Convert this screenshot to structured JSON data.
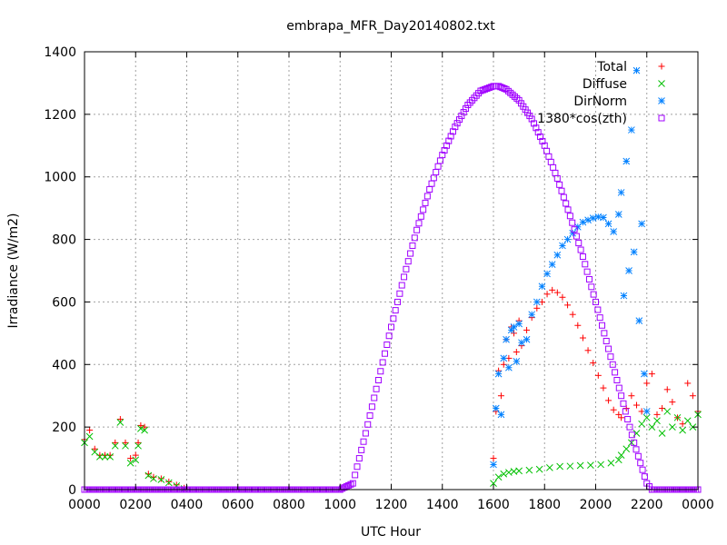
{
  "chart_data": {
    "type": "scatter",
    "title": "embrapa_MFR_Day20140802.txt",
    "xlabel": "UTC Hour",
    "ylabel": "Irradiance (W/m2)",
    "xlim": [
      0,
      24
    ],
    "ylim": [
      0,
      1400
    ],
    "grid": true,
    "legend_position": "top-right",
    "x_ticks": [
      {
        "value": 0,
        "label": "0000"
      },
      {
        "value": 2,
        "label": "0200"
      },
      {
        "value": 4,
        "label": "0400"
      },
      {
        "value": 6,
        "label": "0600"
      },
      {
        "value": 8,
        "label": "0800"
      },
      {
        "value": 10,
        "label": "1000"
      },
      {
        "value": 12,
        "label": "1200"
      },
      {
        "value": 14,
        "label": "1400"
      },
      {
        "value": 16,
        "label": "1600"
      },
      {
        "value": 18,
        "label": "1800"
      },
      {
        "value": 20,
        "label": "2000"
      },
      {
        "value": 22,
        "label": "2200"
      },
      {
        "value": 24,
        "label": "0000"
      }
    ],
    "y_ticks": [
      {
        "value": 0,
        "label": "0"
      },
      {
        "value": 200,
        "label": "200"
      },
      {
        "value": 400,
        "label": "400"
      },
      {
        "value": 600,
        "label": "600"
      },
      {
        "value": 800,
        "label": "800"
      },
      {
        "value": 1000,
        "label": "1000"
      },
      {
        "value": 1200,
        "label": "1200"
      },
      {
        "value": 1400,
        "label": "1400"
      }
    ],
    "series": [
      {
        "name": "Total",
        "marker": "plus",
        "color": "#ff0000",
        "points": [
          [
            0.0,
            160
          ],
          [
            0.2,
            190
          ],
          [
            0.4,
            130
          ],
          [
            0.6,
            110
          ],
          [
            0.8,
            110
          ],
          [
            1.0,
            110
          ],
          [
            1.2,
            150
          ],
          [
            1.4,
            225
          ],
          [
            1.6,
            150
          ],
          [
            1.8,
            100
          ],
          [
            2.0,
            110
          ],
          [
            2.1,
            150
          ],
          [
            2.2,
            205
          ],
          [
            2.35,
            200
          ],
          [
            2.5,
            50
          ],
          [
            2.7,
            40
          ],
          [
            3.0,
            35
          ],
          [
            3.3,
            25
          ],
          [
            3.6,
            15
          ],
          [
            3.9,
            5
          ],
          [
            16.0,
            100
          ],
          [
            16.1,
            250
          ],
          [
            16.2,
            380
          ],
          [
            16.3,
            300
          ],
          [
            16.4,
            400
          ],
          [
            16.5,
            480
          ],
          [
            16.6,
            420
          ],
          [
            16.7,
            520
          ],
          [
            16.8,
            500
          ],
          [
            16.9,
            440
          ],
          [
            17.0,
            540
          ],
          [
            17.1,
            460
          ],
          [
            17.3,
            510
          ],
          [
            17.5,
            550
          ],
          [
            17.7,
            580
          ],
          [
            17.9,
            600
          ],
          [
            18.1,
            625
          ],
          [
            18.3,
            638
          ],
          [
            18.5,
            630
          ],
          [
            18.7,
            615
          ],
          [
            18.9,
            590
          ],
          [
            19.1,
            560
          ],
          [
            19.3,
            525
          ],
          [
            19.5,
            485
          ],
          [
            19.7,
            445
          ],
          [
            19.9,
            405
          ],
          [
            20.1,
            365
          ],
          [
            20.3,
            325
          ],
          [
            20.5,
            285
          ],
          [
            20.7,
            255
          ],
          [
            20.9,
            240
          ],
          [
            21.0,
            230
          ],
          [
            21.2,
            260
          ],
          [
            21.4,
            300
          ],
          [
            21.6,
            270
          ],
          [
            21.8,
            250
          ],
          [
            22.0,
            340
          ],
          [
            22.2,
            370
          ],
          [
            22.4,
            240
          ],
          [
            22.6,
            260
          ],
          [
            22.8,
            320
          ],
          [
            23.0,
            280
          ],
          [
            23.2,
            230
          ],
          [
            23.4,
            210
          ],
          [
            23.6,
            340
          ],
          [
            23.8,
            300
          ],
          [
            24.0,
            250
          ]
        ]
      },
      {
        "name": "Diffuse",
        "marker": "cross",
        "color": "#00c000",
        "points": [
          [
            0.0,
            150
          ],
          [
            0.2,
            170
          ],
          [
            0.4,
            120
          ],
          [
            0.6,
            105
          ],
          [
            0.8,
            105
          ],
          [
            1.0,
            105
          ],
          [
            1.2,
            140
          ],
          [
            1.4,
            215
          ],
          [
            1.6,
            140
          ],
          [
            1.8,
            85
          ],
          [
            2.0,
            95
          ],
          [
            2.1,
            140
          ],
          [
            2.2,
            195
          ],
          [
            2.35,
            190
          ],
          [
            2.5,
            45
          ],
          [
            2.7,
            35
          ],
          [
            3.0,
            32
          ],
          [
            3.3,
            22
          ],
          [
            3.6,
            12
          ],
          [
            3.9,
            3
          ],
          [
            16.0,
            20
          ],
          [
            16.2,
            40
          ],
          [
            16.4,
            50
          ],
          [
            16.6,
            55
          ],
          [
            16.8,
            58
          ],
          [
            17.0,
            60
          ],
          [
            17.4,
            62
          ],
          [
            17.8,
            65
          ],
          [
            18.2,
            70
          ],
          [
            18.6,
            74
          ],
          [
            19.0,
            75
          ],
          [
            19.4,
            77
          ],
          [
            19.8,
            78
          ],
          [
            20.2,
            80
          ],
          [
            20.6,
            85
          ],
          [
            20.9,
            95
          ],
          [
            21.0,
            110
          ],
          [
            21.2,
            130
          ],
          [
            21.4,
            150
          ],
          [
            21.6,
            180
          ],
          [
            21.8,
            210
          ],
          [
            22.0,
            230
          ],
          [
            22.2,
            200
          ],
          [
            22.4,
            220
          ],
          [
            22.6,
            180
          ],
          [
            22.8,
            250
          ],
          [
            23.0,
            200
          ],
          [
            23.2,
            230
          ],
          [
            23.4,
            190
          ],
          [
            23.6,
            220
          ],
          [
            23.8,
            200
          ],
          [
            24.0,
            240
          ]
        ]
      },
      {
        "name": "DirNorm",
        "marker": "star",
        "color": "#0080ff",
        "points": [
          [
            16.0,
            80
          ],
          [
            16.1,
            260
          ],
          [
            16.2,
            370
          ],
          [
            16.3,
            240
          ],
          [
            16.4,
            420
          ],
          [
            16.5,
            480
          ],
          [
            16.6,
            390
          ],
          [
            16.7,
            510
          ],
          [
            16.8,
            520
          ],
          [
            16.9,
            410
          ],
          [
            17.0,
            530
          ],
          [
            17.1,
            470
          ],
          [
            17.3,
            480
          ],
          [
            17.5,
            560
          ],
          [
            17.7,
            600
          ],
          [
            17.9,
            650
          ],
          [
            18.1,
            690
          ],
          [
            18.3,
            720
          ],
          [
            18.5,
            750
          ],
          [
            18.7,
            780
          ],
          [
            18.9,
            800
          ],
          [
            19.1,
            820
          ],
          [
            19.3,
            840
          ],
          [
            19.5,
            855
          ],
          [
            19.7,
            862
          ],
          [
            19.9,
            868
          ],
          [
            20.1,
            872
          ],
          [
            20.3,
            870
          ],
          [
            20.5,
            850
          ],
          [
            20.7,
            825
          ],
          [
            20.9,
            880
          ],
          [
            21.0,
            950
          ],
          [
            21.2,
            1050
          ],
          [
            21.4,
            1150
          ],
          [
            21.6,
            1340
          ],
          [
            21.8,
            850
          ],
          [
            21.1,
            620
          ],
          [
            21.3,
            700
          ],
          [
            21.5,
            760
          ],
          [
            21.7,
            540
          ],
          [
            21.9,
            370
          ],
          [
            22.0,
            250
          ]
        ]
      },
      {
        "name": "1380*cos(zth)",
        "marker": "square",
        "color": "#a000ff",
        "points": [
          [
            0.0,
            0
          ],
          [
            1.0,
            0
          ],
          [
            2.0,
            0
          ],
          [
            3.0,
            0
          ],
          [
            4.0,
            0
          ],
          [
            5.0,
            0
          ],
          [
            6.0,
            0
          ],
          [
            7.0,
            0
          ],
          [
            8.0,
            0
          ],
          [
            9.0,
            0
          ],
          [
            10.0,
            0
          ],
          [
            10.5,
            20
          ],
          [
            11.0,
            180
          ],
          [
            11.5,
            350
          ],
          [
            12.0,
            520
          ],
          [
            12.5,
            680
          ],
          [
            13.0,
            830
          ],
          [
            13.5,
            960
          ],
          [
            14.0,
            1070
          ],
          [
            14.5,
            1160
          ],
          [
            15.0,
            1230
          ],
          [
            15.5,
            1275
          ],
          [
            16.0,
            1290
          ],
          [
            16.2,
            1290
          ],
          [
            16.5,
            1280
          ],
          [
            17.0,
            1245
          ],
          [
            17.5,
            1185
          ],
          [
            18.0,
            1100
          ],
          [
            18.5,
            995
          ],
          [
            19.0,
            875
          ],
          [
            19.5,
            745
          ],
          [
            20.0,
            600
          ],
          [
            20.5,
            450
          ],
          [
            21.0,
            300
          ],
          [
            21.5,
            150
          ],
          [
            22.0,
            20
          ],
          [
            22.2,
            0
          ],
          [
            23.0,
            0
          ],
          [
            24.0,
            0
          ]
        ]
      }
    ]
  }
}
